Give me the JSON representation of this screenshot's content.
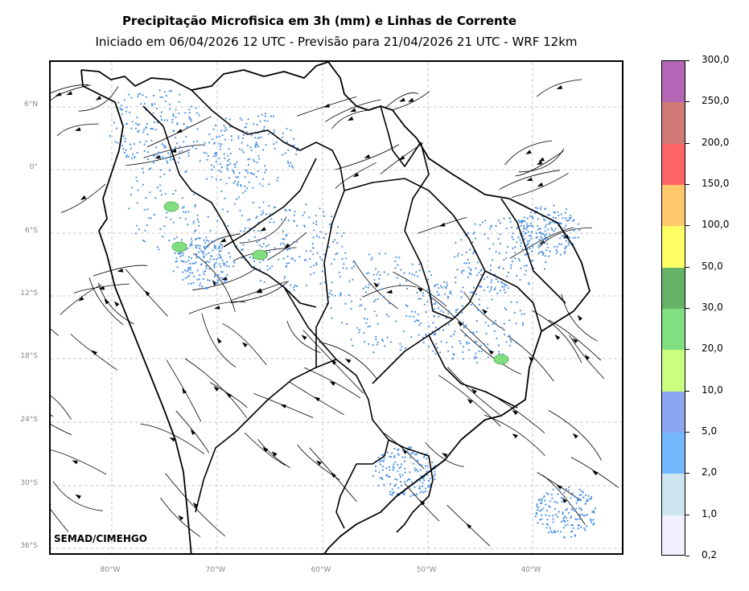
{
  "title": "Precipitação Microfisica em 3h (mm) e Linhas de Corrente",
  "subtitle": "Iniciado em 06/04/2026 12 UTC - Previsão para 21/04/2026 21 UTC - WRF 12km",
  "credit": "SEMAD/CIMEHGO",
  "lat_labels": [
    "6°N",
    "0°",
    "6°S",
    "12°S",
    "18°S",
    "24°S",
    "30°S",
    "36°S"
  ],
  "lon_labels": [
    "80°W",
    "70°W",
    "60°W",
    "50°W",
    "40°W"
  ],
  "colorbar": {
    "labels": [
      "300,0",
      "250,0",
      "200,0",
      "150,0",
      "100,0",
      "50,0",
      "30,0",
      "20,0",
      "10,0",
      "5,0",
      "2,0",
      "1,0",
      "0,2"
    ],
    "colors": [
      "#b266b3",
      "#d27a78",
      "#ff6565",
      "#ffc86b",
      "#ffff66",
      "#66b266",
      "#80df80",
      "#ccff80",
      "#8ca6f0",
      "#73b7ff",
      "#cce5ef",
      "#f0f0ff"
    ]
  },
  "colors": {
    "grid": "#bbbbbb",
    "border": "#000000",
    "rain": "#4a90e2",
    "streamline": "#000000"
  }
}
